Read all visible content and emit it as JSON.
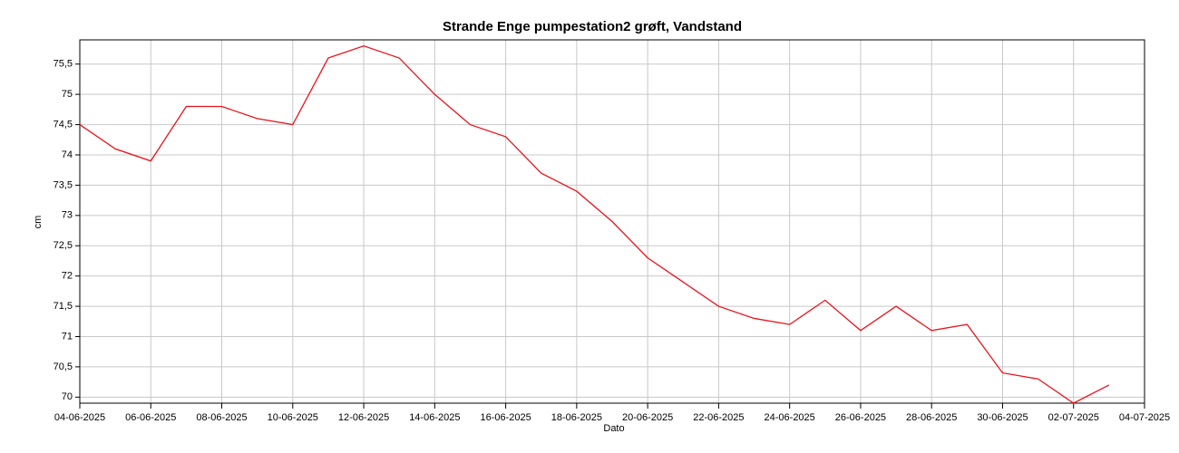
{
  "chart_data": {
    "type": "line",
    "title": "Strande Enge pumpestation2 grøft, Vandstand",
    "x_label": "Dato",
    "y_label": "cm",
    "x": [
      "04-06-2025",
      "05-06-2025",
      "06-06-2025",
      "07-06-2025",
      "08-06-2025",
      "09-06-2025",
      "10-06-2025",
      "11-06-2025",
      "12-06-2025",
      "13-06-2025",
      "14-06-2025",
      "15-06-2025",
      "16-06-2025",
      "17-06-2025",
      "18-06-2025",
      "19-06-2025",
      "20-06-2025",
      "21-06-2025",
      "22-06-2025",
      "23-06-2025",
      "24-06-2025",
      "25-06-2025",
      "26-06-2025",
      "27-06-2025",
      "28-06-2025",
      "29-06-2025",
      "30-06-2025",
      "01-07-2025",
      "02-07-2025",
      "03-07-2025"
    ],
    "series": [
      {
        "name": "Vandstand",
        "color": "#e8141c",
        "values": [
          74.5,
          74.1,
          73.9,
          74.8,
          74.8,
          74.6,
          74.5,
          75.6,
          75.8,
          75.6,
          75.0,
          74.5,
          74.3,
          73.7,
          73.4,
          72.9,
          72.3,
          71.9,
          71.5,
          71.3,
          71.2,
          71.6,
          71.1,
          71.5,
          71.1,
          71.2,
          70.4,
          70.3,
          69.9,
          70.2
        ]
      }
    ],
    "xlim": [
      "04-06-2025",
      "04-07-2025"
    ],
    "xticks": [
      "04-06-2025",
      "06-06-2025",
      "08-06-2025",
      "10-06-2025",
      "12-06-2025",
      "14-06-2025",
      "16-06-2025",
      "18-06-2025",
      "20-06-2025",
      "22-06-2025",
      "24-06-2025",
      "26-06-2025",
      "28-06-2025",
      "30-06-2025",
      "02-07-2025",
      "04-07-2025"
    ],
    "ylim": [
      69.9,
      75.9
    ],
    "yticks": [
      70,
      {
        "value": 70.5,
        "label": "70,5"
      },
      71,
      {
        "value": 71.5,
        "label": "71,5"
      },
      72,
      {
        "value": 72.5,
        "label": "72,5"
      },
      73,
      {
        "value": 73.5,
        "label": "73,5"
      },
      74,
      {
        "value": 74.5,
        "label": "74,5"
      },
      75,
      {
        "value": 75.5,
        "label": "75,5"
      }
    ],
    "grid": true
  }
}
